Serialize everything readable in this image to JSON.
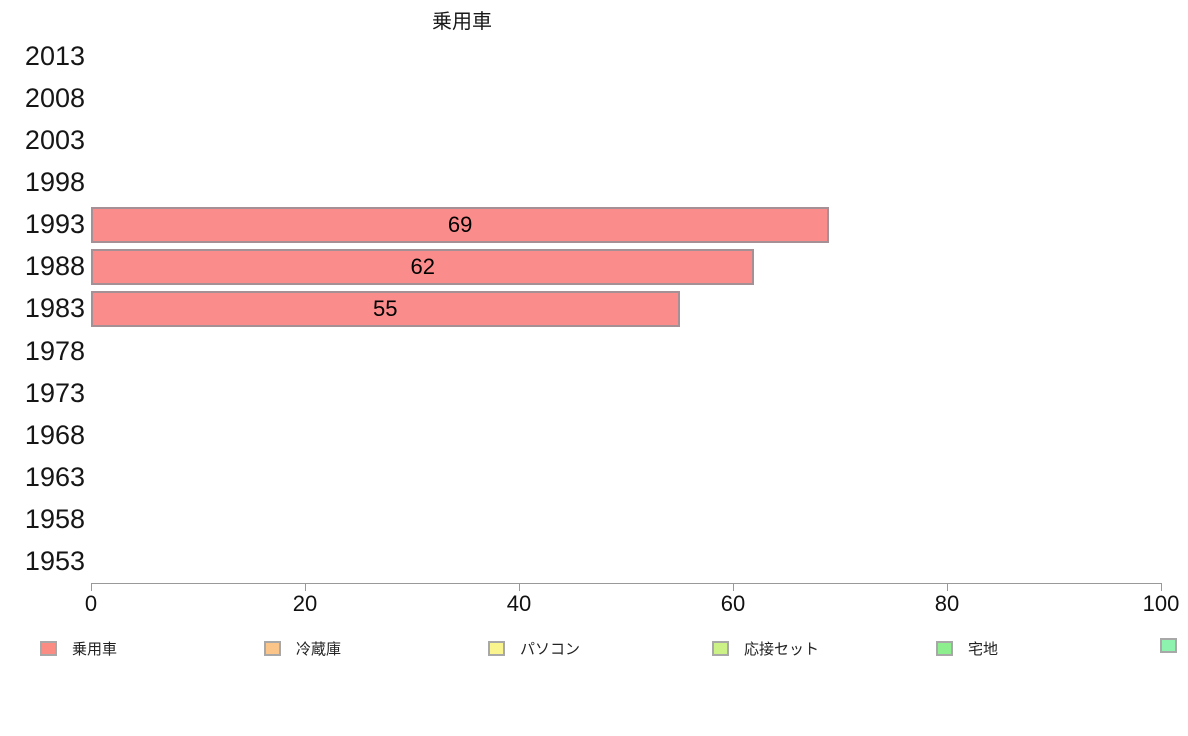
{
  "chart_data": {
    "type": "bar",
    "orientation": "horizontal",
    "title": "乗用車",
    "categories": [
      "2013",
      "2008",
      "2003",
      "1998",
      "1993",
      "1988",
      "1983",
      "1978",
      "1973",
      "1968",
      "1963",
      "1958",
      "1953"
    ],
    "values": [
      null,
      null,
      null,
      null,
      69,
      62,
      55,
      null,
      null,
      null,
      null,
      null,
      null
    ],
    "value_labels": [
      "",
      "",
      "",
      "",
      "69",
      "62",
      "55",
      "",
      "",
      "",
      "",
      "",
      ""
    ],
    "xlim": [
      0,
      100
    ],
    "x_ticks": [
      "0",
      "20",
      "40",
      "60",
      "80",
      "100"
    ],
    "grid": false,
    "bar_color": "#fb8c8c",
    "bar_border_color": "#a59095",
    "axis_color": "#999999",
    "legend_position": "bottom",
    "legend": [
      {
        "label": "乗用車",
        "color": "#fa8c84"
      },
      {
        "label": "冷蔵庫",
        "color": "#fbc489"
      },
      {
        "label": "パソコン",
        "color": "#faf48e"
      },
      {
        "label": "応接セット",
        "color": "#ccf287"
      },
      {
        "label": "宅地",
        "color": "#8cee8c"
      },
      {
        "label": "",
        "color": "#8cf2ae"
      }
    ]
  }
}
